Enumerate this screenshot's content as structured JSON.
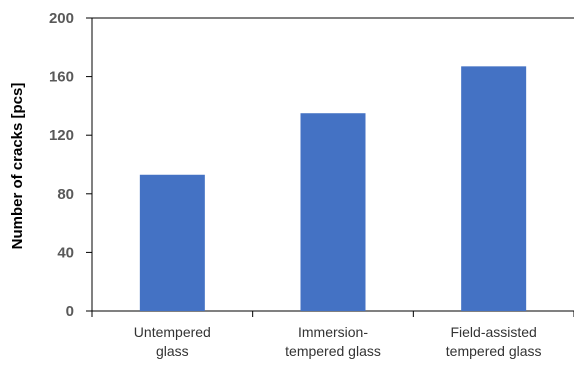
{
  "chart_data": {
    "type": "bar",
    "title": "",
    "xlabel": "",
    "ylabel": "Number of cracks [pcs]",
    "categories": [
      [
        "Untempered",
        "glass"
      ],
      [
        "Immersion-",
        "tempered glass"
      ],
      [
        "Field-assisted",
        "tempered glass"
      ]
    ],
    "values": [
      93,
      135,
      167
    ],
    "ylim": [
      0,
      200
    ],
    "yticks": [
      0,
      40,
      80,
      120,
      160,
      200
    ],
    "grid": false,
    "legend": "none",
    "bar_color": "#4472C4",
    "axis_color": "#000000"
  }
}
